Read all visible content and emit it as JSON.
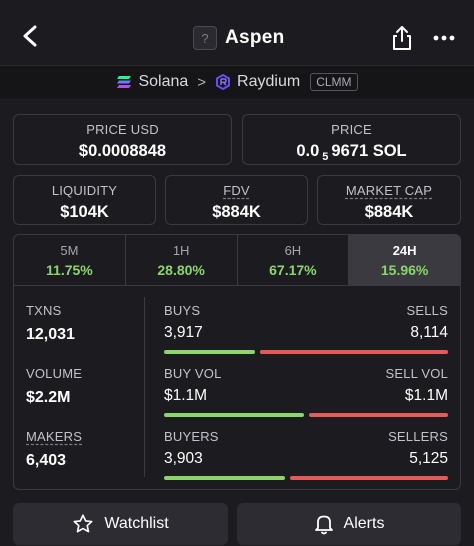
{
  "header": {
    "token_logo_glyph": "?",
    "title": "Aspen"
  },
  "chain": {
    "network": "Solana",
    "dex": "Raydium",
    "pool_type": "CLMM",
    "colors": {
      "solana": "#9945ff",
      "raydium": "#6c4cf5"
    }
  },
  "price": {
    "usd_label": "PRICE USD",
    "usd_value": "$0.0008848",
    "native_label": "PRICE",
    "native_prefix": "0.0",
    "native_sub": "5",
    "native_rest": "9671 SOL"
  },
  "metrics": [
    {
      "label": "LIQUIDITY",
      "value": "$104K"
    },
    {
      "label": "FDV",
      "value": "$884K"
    },
    {
      "label": "MARKET CAP",
      "value": "$884K"
    }
  ],
  "timeframes": [
    {
      "label": "5M",
      "value": "11.75%"
    },
    {
      "label": "1H",
      "value": "28.80%"
    },
    {
      "label": "6H",
      "value": "67.17%"
    },
    {
      "label": "24H",
      "value": "15.96%"
    }
  ],
  "stats": {
    "txns": {
      "label": "TXNS",
      "value": "12,031",
      "left_label": "BUYS",
      "left_value": "3,917",
      "right_label": "SELLS",
      "right_value": "8,114",
      "buy_fraction": 0.326
    },
    "volume": {
      "label": "VOLUME",
      "value": "$2.2M",
      "left_label": "BUY VOL",
      "left_value": "$1.1M",
      "right_label": "SELL VOL",
      "right_value": "$1.1M",
      "buy_fraction": 0.5
    },
    "makers": {
      "label": "MAKERS",
      "value": "6,403",
      "left_label": "BUYERS",
      "left_value": "3,903",
      "right_label": "SELLERS",
      "right_value": "5,125",
      "buy_fraction": 0.432
    }
  },
  "buttons": {
    "watchlist": "Watchlist",
    "alerts": "Alerts"
  },
  "colors": {
    "positive": "#8ad66a",
    "negative": "#e65a5a",
    "background": "#1c1c20"
  },
  "icons": [
    "back-arrow-icon",
    "share-icon",
    "more-icon",
    "solana-icon",
    "raydium-icon",
    "star-icon",
    "bell-icon"
  ]
}
